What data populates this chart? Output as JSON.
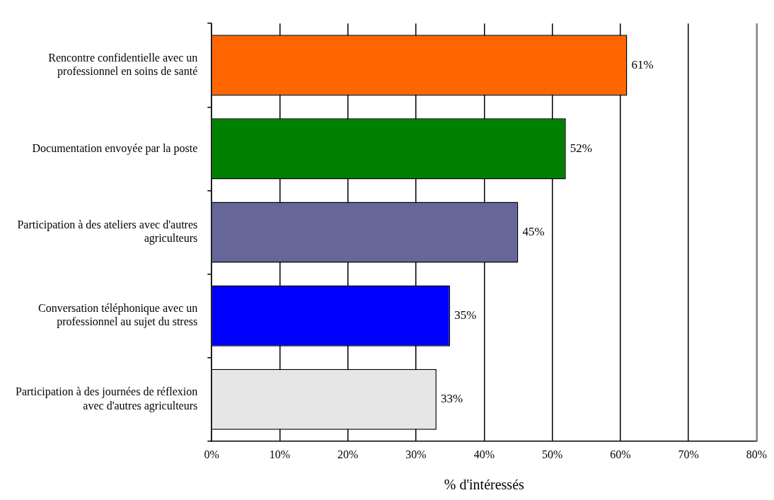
{
  "chart_data": {
    "type": "bar",
    "orientation": "horizontal",
    "xlabel": "% d'intéressés",
    "categories": [
      "Rencontre confidentielle avec un professionnel en soins de santé",
      "Documentation envoyée par la poste",
      "Participation à des ateliers avec d'autres agriculteurs",
      "Conversation téléphonique avec un professionnel au sujet du stress",
      "Participation à des journées de réflexion avec d'autres agriculteurs"
    ],
    "values": [
      61,
      52,
      45,
      35,
      33
    ],
    "colors": [
      "#ff6600",
      "#008000",
      "#666699",
      "#0000ff",
      "#e6e6e6"
    ],
    "value_labels": [
      "61%",
      "52%",
      "45%",
      "35%",
      "33%"
    ],
    "xlim": [
      0,
      80
    ],
    "xticks": [
      {
        "value": 0,
        "label": "0%"
      },
      {
        "value": 10,
        "label": "10%"
      },
      {
        "value": 20,
        "label": "20%"
      },
      {
        "value": 30,
        "label": "30%"
      },
      {
        "value": 40,
        "label": "40%"
      },
      {
        "value": 50,
        "label": "50%"
      },
      {
        "value": 60,
        "label": "60%"
      },
      {
        "value": 70,
        "label": "70%"
      },
      {
        "value": 80,
        "label": "80%"
      }
    ],
    "grid": "x",
    "legend": false
  }
}
